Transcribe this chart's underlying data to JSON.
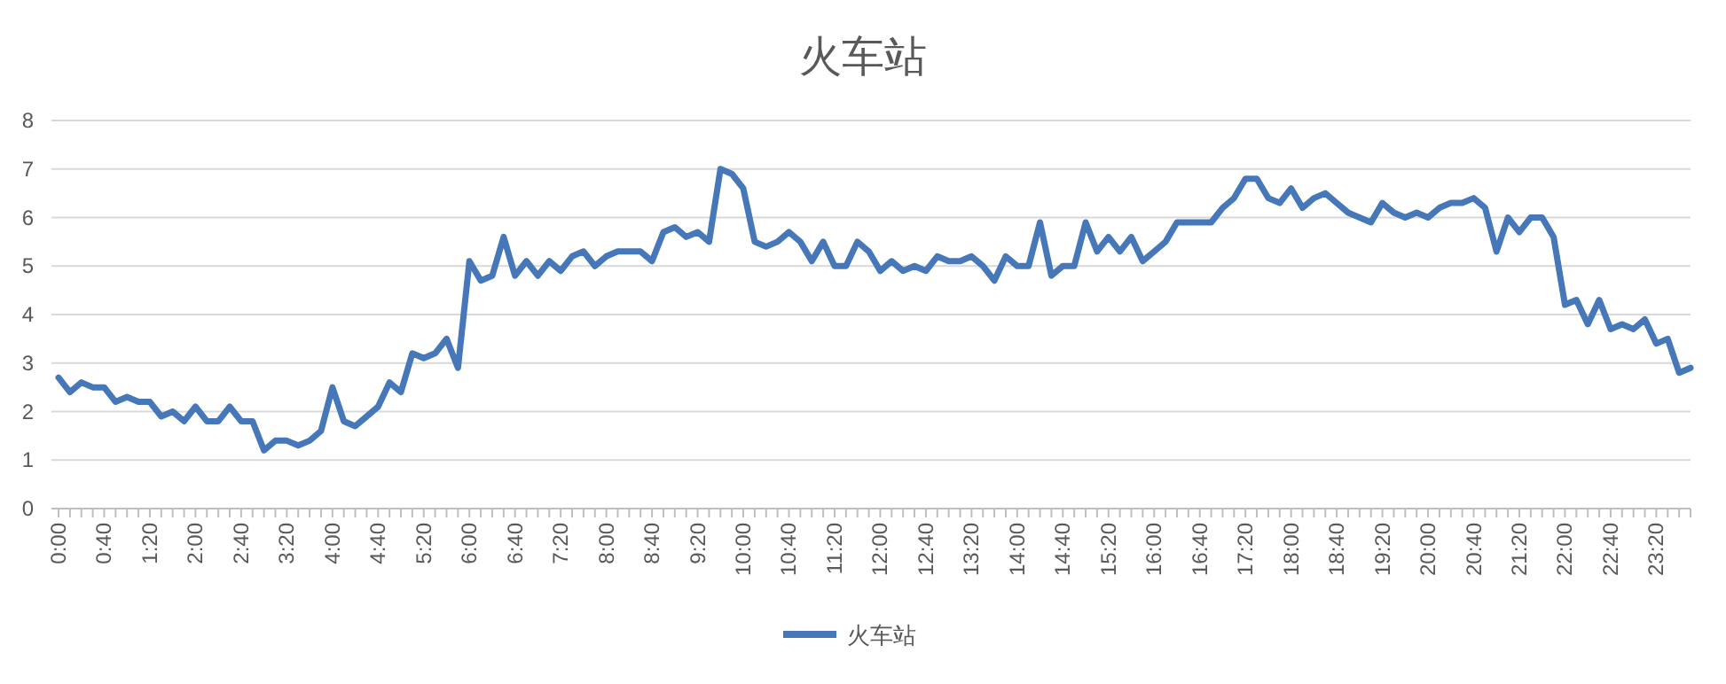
{
  "chart_data": {
    "type": "line",
    "title": "火车站",
    "categories": [
      "0:00",
      null,
      null,
      null,
      "0:40",
      null,
      null,
      null,
      "1:20",
      null,
      null,
      null,
      "2:00",
      null,
      null,
      null,
      "2:40",
      null,
      null,
      null,
      "3:20",
      null,
      null,
      null,
      "4:00",
      null,
      null,
      null,
      "4:40",
      null,
      null,
      null,
      "5:20",
      null,
      null,
      null,
      "6:00",
      null,
      null,
      null,
      "6:40",
      null,
      null,
      null,
      "7:20",
      null,
      null,
      null,
      "8:00",
      null,
      null,
      null,
      "8:40",
      null,
      null,
      null,
      "9:20",
      null,
      null,
      null,
      "10:00",
      null,
      null,
      null,
      "10:40",
      null,
      null,
      null,
      "11:20",
      null,
      null,
      null,
      "12:00",
      null,
      null,
      null,
      "12:40",
      null,
      null,
      null,
      "13:20",
      null,
      null,
      null,
      "14:00",
      null,
      null,
      null,
      "14:40",
      null,
      null,
      null,
      "15:20",
      null,
      null,
      null,
      "16:00",
      null,
      null,
      null,
      "16:40",
      null,
      null,
      null,
      "17:20",
      null,
      null,
      null,
      "18:00",
      null,
      null,
      null,
      "18:40",
      null,
      null,
      null,
      "19:20",
      null,
      null,
      null,
      "20:00",
      null,
      null,
      null,
      "20:40",
      null,
      null,
      null,
      "21:20",
      null,
      null,
      null,
      "22:00",
      null,
      null,
      null,
      "22:40",
      null,
      null,
      null,
      "23:20",
      null,
      null,
      null
    ],
    "series": [
      {
        "name": "火车站",
        "color": "#4677b8",
        "values": [
          2.7,
          2.4,
          2.6,
          2.5,
          2.5,
          2.2,
          2.3,
          2.2,
          2.2,
          1.9,
          2.0,
          1.8,
          2.1,
          1.8,
          1.8,
          2.1,
          1.8,
          1.8,
          1.2,
          1.4,
          1.4,
          1.3,
          1.4,
          1.6,
          2.5,
          1.8,
          1.7,
          1.9,
          2.1,
          2.6,
          2.4,
          3.2,
          3.1,
          3.2,
          3.5,
          2.9,
          5.1,
          4.7,
          4.8,
          5.6,
          4.8,
          5.1,
          4.8,
          5.1,
          4.9,
          5.2,
          5.3,
          5.0,
          5.2,
          5.3,
          5.3,
          5.3,
          5.1,
          5.7,
          5.8,
          5.6,
          5.7,
          5.5,
          7.0,
          6.9,
          6.6,
          5.5,
          5.4,
          5.5,
          5.7,
          5.5,
          5.1,
          5.5,
          5.0,
          5.0,
          5.5,
          5.3,
          4.9,
          5.1,
          4.9,
          5.0,
          4.9,
          5.2,
          5.1,
          5.1,
          5.2,
          5.0,
          4.7,
          5.2,
          5.0,
          5.0,
          5.9,
          4.8,
          5.0,
          5.0,
          5.9,
          5.3,
          5.6,
          5.3,
          5.6,
          5.1,
          5.3,
          5.5,
          5.9,
          5.9,
          5.9,
          5.9,
          6.2,
          6.4,
          6.8,
          6.8,
          6.4,
          6.3,
          6.6,
          6.2,
          6.4,
          6.5,
          6.3,
          6.1,
          6.0,
          5.9,
          6.3,
          6.1,
          6.0,
          6.1,
          6.0,
          6.2,
          6.3,
          6.3,
          6.4,
          6.2,
          5.3,
          6.0,
          5.7,
          6.0,
          6.0,
          5.6,
          4.2,
          4.3,
          3.8,
          4.3,
          3.7,
          3.8,
          3.7,
          3.9,
          3.4,
          3.5,
          2.8,
          2.9
        ]
      }
    ],
    "ylim": [
      0,
      8
    ],
    "yticks": [
      0,
      1,
      2,
      3,
      4,
      5,
      6,
      7,
      8
    ],
    "grid": "y",
    "legend": "bottom",
    "line_style": "solid"
  }
}
